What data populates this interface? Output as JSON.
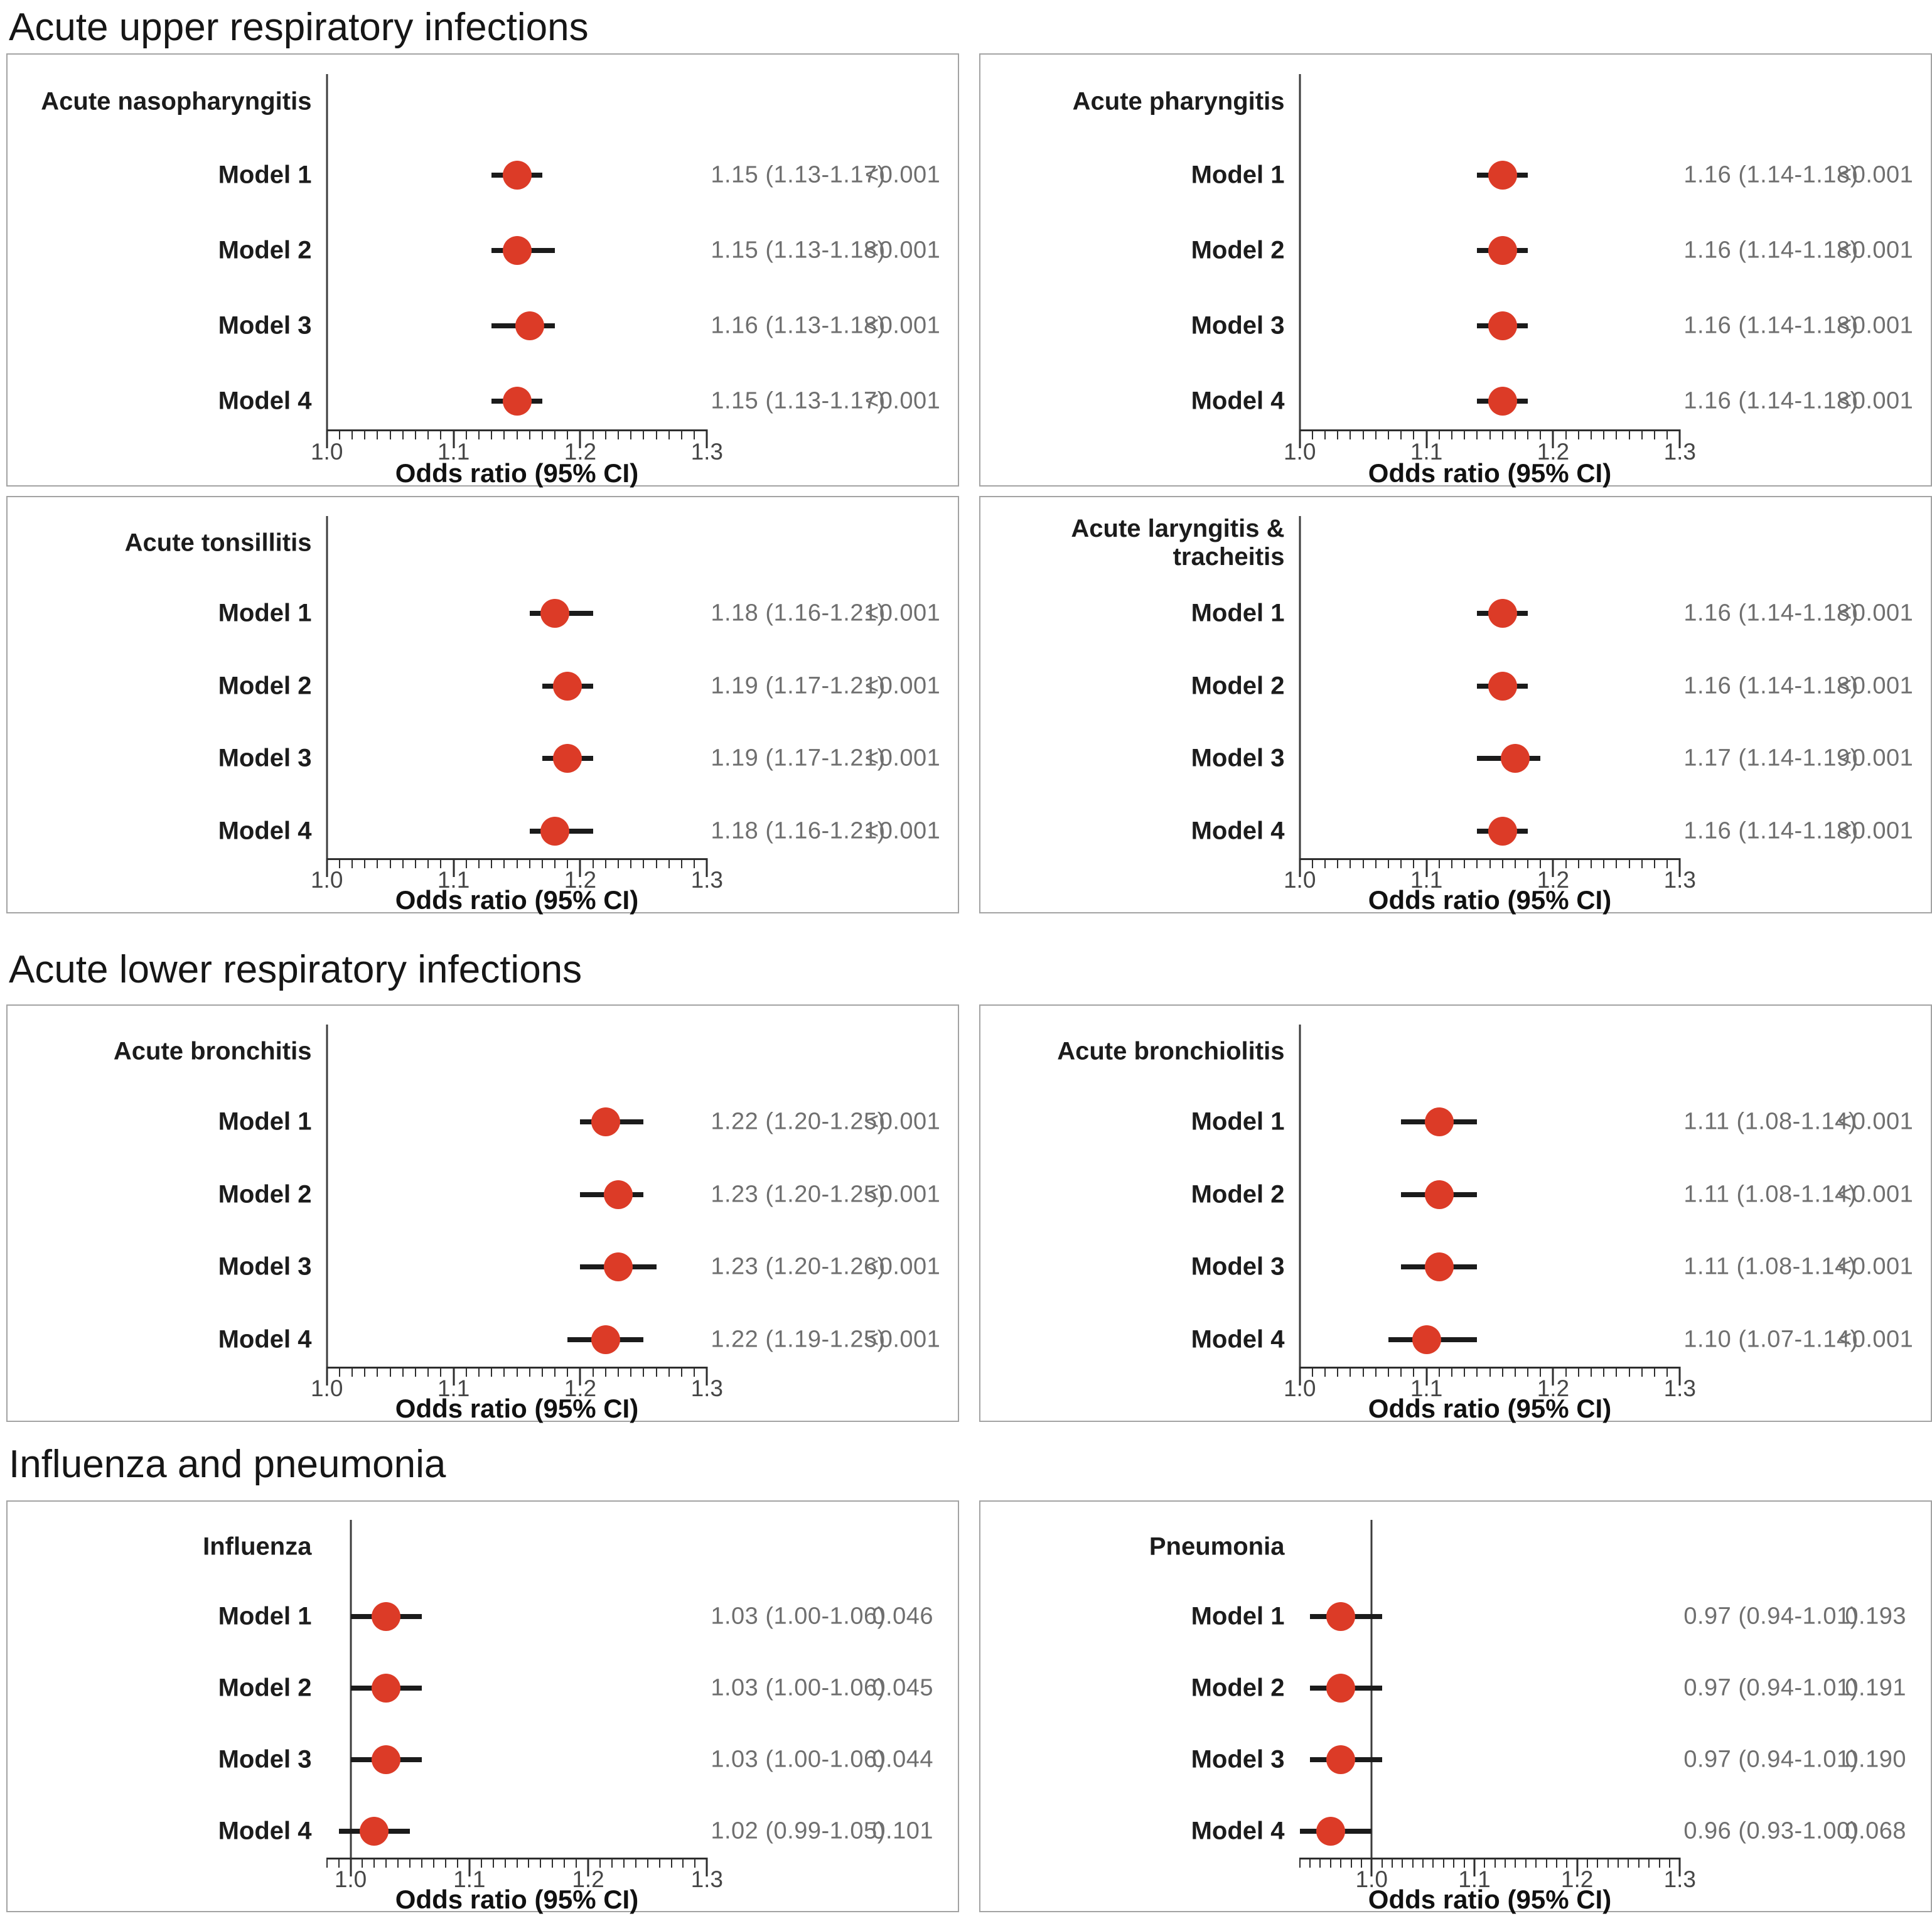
{
  "sections": [
    {
      "heading": "Acute upper respiratory infections",
      "panel_indices": [
        0,
        1,
        2,
        3
      ]
    },
    {
      "heading": "Acute lower respiratory infections",
      "panel_indices": [
        4,
        5
      ]
    },
    {
      "heading": "Influenza and pneumonia",
      "panel_indices": [
        6,
        7
      ]
    }
  ],
  "colors": {
    "point": "#DC3B27",
    "whisker": "#1b1b1b",
    "axis": "#2e2e2e",
    "reference_line": "#3d3d3d",
    "value_text": "#6f6f6f",
    "tick_text": "#464646"
  },
  "chart_data": [
    {
      "type": "scatter",
      "title": "Acute nasopharyngitis",
      "section": "Acute upper respiratory infections",
      "xlabel": "Odds ratio (95% CI)",
      "xlim": [
        1.0,
        1.3
      ],
      "xticks": [
        1.0,
        1.1,
        1.2,
        1.3
      ],
      "minor_tick_step": 0.01,
      "reference_line_x": 1.0,
      "rows": [
        {
          "model": "Model 1",
          "or": 1.15,
          "ci_low": 1.13,
          "ci_high": 1.17,
          "label": "1.15 (1.13-1.17)",
          "p": "<0.001"
        },
        {
          "model": "Model 2",
          "or": 1.15,
          "ci_low": 1.13,
          "ci_high": 1.18,
          "label": "1.15 (1.13-1.18)",
          "p": "<0.001"
        },
        {
          "model": "Model 3",
          "or": 1.16,
          "ci_low": 1.13,
          "ci_high": 1.18,
          "label": "1.16 (1.13-1.18)",
          "p": "<0.001"
        },
        {
          "model": "Model 4",
          "or": 1.15,
          "ci_low": 1.13,
          "ci_high": 1.17,
          "label": "1.15 (1.13-1.17)",
          "p": "<0.001"
        }
      ]
    },
    {
      "type": "scatter",
      "title": "Acute pharyngitis",
      "section": "Acute upper respiratory infections",
      "xlabel": "Odds ratio (95% CI)",
      "xlim": [
        1.0,
        1.3
      ],
      "xticks": [
        1.0,
        1.1,
        1.2,
        1.3
      ],
      "minor_tick_step": 0.01,
      "reference_line_x": 1.0,
      "rows": [
        {
          "model": "Model 1",
          "or": 1.16,
          "ci_low": 1.14,
          "ci_high": 1.18,
          "label": "1.16 (1.14-1.18)",
          "p": "<0.001"
        },
        {
          "model": "Model 2",
          "or": 1.16,
          "ci_low": 1.14,
          "ci_high": 1.18,
          "label": "1.16 (1.14-1.18)",
          "p": "<0.001"
        },
        {
          "model": "Model 3",
          "or": 1.16,
          "ci_low": 1.14,
          "ci_high": 1.18,
          "label": "1.16 (1.14-1.18)",
          "p": "<0.001"
        },
        {
          "model": "Model 4",
          "or": 1.16,
          "ci_low": 1.14,
          "ci_high": 1.18,
          "label": "1.16 (1.14-1.18)",
          "p": "<0.001"
        }
      ]
    },
    {
      "type": "scatter",
      "title": "Acute tonsillitis",
      "section": "Acute upper respiratory infections",
      "xlabel": "Odds ratio (95% CI)",
      "xlim": [
        1.0,
        1.3
      ],
      "xticks": [
        1.0,
        1.1,
        1.2,
        1.3
      ],
      "minor_tick_step": 0.01,
      "reference_line_x": 1.0,
      "rows": [
        {
          "model": "Model 1",
          "or": 1.18,
          "ci_low": 1.16,
          "ci_high": 1.21,
          "label": "1.18 (1.16-1.21)",
          "p": "<0.001"
        },
        {
          "model": "Model 2",
          "or": 1.19,
          "ci_low": 1.17,
          "ci_high": 1.21,
          "label": "1.19 (1.17-1.21)",
          "p": "<0.001"
        },
        {
          "model": "Model 3",
          "or": 1.19,
          "ci_low": 1.17,
          "ci_high": 1.21,
          "label": "1.19 (1.17-1.21)",
          "p": "<0.001"
        },
        {
          "model": "Model 4",
          "or": 1.18,
          "ci_low": 1.16,
          "ci_high": 1.21,
          "label": "1.18 (1.16-1.21)",
          "p": "<0.001"
        }
      ]
    },
    {
      "type": "scatter",
      "title": "Acute laryngitis & tracheitis",
      "section": "Acute upper respiratory infections",
      "xlabel": "Odds ratio (95% CI)",
      "xlim": [
        1.0,
        1.3
      ],
      "xticks": [
        1.0,
        1.1,
        1.2,
        1.3
      ],
      "minor_tick_step": 0.01,
      "reference_line_x": 1.0,
      "rows": [
        {
          "model": "Model 1",
          "or": 1.16,
          "ci_low": 1.14,
          "ci_high": 1.18,
          "label": "1.16 (1.14-1.18)",
          "p": "<0.001"
        },
        {
          "model": "Model 2",
          "or": 1.16,
          "ci_low": 1.14,
          "ci_high": 1.18,
          "label": "1.16 (1.14-1.18)",
          "p": "<0.001"
        },
        {
          "model": "Model 3",
          "or": 1.17,
          "ci_low": 1.14,
          "ci_high": 1.19,
          "label": "1.17 (1.14-1.19)",
          "p": "<0.001"
        },
        {
          "model": "Model 4",
          "or": 1.16,
          "ci_low": 1.14,
          "ci_high": 1.18,
          "label": "1.16 (1.14-1.18)",
          "p": "<0.001"
        }
      ]
    },
    {
      "type": "scatter",
      "title": "Acute bronchitis",
      "section": "Acute lower respiratory infections",
      "xlabel": "Odds ratio (95% CI)",
      "xlim": [
        1.0,
        1.3
      ],
      "xticks": [
        1.0,
        1.1,
        1.2,
        1.3
      ],
      "minor_tick_step": 0.01,
      "reference_line_x": 1.0,
      "rows": [
        {
          "model": "Model 1",
          "or": 1.22,
          "ci_low": 1.2,
          "ci_high": 1.25,
          "label": "1.22 (1.20-1.25)",
          "p": "<0.001"
        },
        {
          "model": "Model 2",
          "or": 1.23,
          "ci_low": 1.2,
          "ci_high": 1.25,
          "label": "1.23 (1.20-1.25)",
          "p": "<0.001"
        },
        {
          "model": "Model 3",
          "or": 1.23,
          "ci_low": 1.2,
          "ci_high": 1.26,
          "label": "1.23 (1.20-1.26)",
          "p": "<0.001"
        },
        {
          "model": "Model 4",
          "or": 1.22,
          "ci_low": 1.19,
          "ci_high": 1.25,
          "label": "1.22 (1.19-1.25)",
          "p": "<0.001"
        }
      ]
    },
    {
      "type": "scatter",
      "title": "Acute bronchiolitis",
      "section": "Acute lower respiratory infections",
      "xlabel": "Odds ratio (95% CI)",
      "xlim": [
        1.0,
        1.3
      ],
      "xticks": [
        1.0,
        1.1,
        1.2,
        1.3
      ],
      "minor_tick_step": 0.01,
      "reference_line_x": 1.0,
      "rows": [
        {
          "model": "Model 1",
          "or": 1.11,
          "ci_low": 1.08,
          "ci_high": 1.14,
          "label": "1.11 (1.08-1.14)",
          "p": "<0.001"
        },
        {
          "model": "Model 2",
          "or": 1.11,
          "ci_low": 1.08,
          "ci_high": 1.14,
          "label": "1.11 (1.08-1.14)",
          "p": "<0.001"
        },
        {
          "model": "Model 3",
          "or": 1.11,
          "ci_low": 1.08,
          "ci_high": 1.14,
          "label": "1.11 (1.08-1.14)",
          "p": "<0.001"
        },
        {
          "model": "Model 4",
          "or": 1.1,
          "ci_low": 1.07,
          "ci_high": 1.14,
          "label": "1.10 (1.07-1.14)",
          "p": "<0.001"
        }
      ]
    },
    {
      "type": "scatter",
      "title": "Influenza",
      "section": "Influenza and pneumonia",
      "xlabel": "Odds ratio (95% CI)",
      "xlim": [
        0.98,
        1.3
      ],
      "xticks": [
        1.0,
        1.1,
        1.2,
        1.3
      ],
      "minor_tick_step": 0.01,
      "reference_line_x": 1.0,
      "rows": [
        {
          "model": "Model 1",
          "or": 1.03,
          "ci_low": 1.0,
          "ci_high": 1.06,
          "label": "1.03 (1.00-1.06)",
          "p": "0.046"
        },
        {
          "model": "Model 2",
          "or": 1.03,
          "ci_low": 1.0,
          "ci_high": 1.06,
          "label": "1.03 (1.00-1.06)",
          "p": "0.045"
        },
        {
          "model": "Model 3",
          "or": 1.03,
          "ci_low": 1.0,
          "ci_high": 1.06,
          "label": "1.03 (1.00-1.06)",
          "p": "0.044"
        },
        {
          "model": "Model 4",
          "or": 1.02,
          "ci_low": 0.99,
          "ci_high": 1.05,
          "label": "1.02 (0.99-1.05)",
          "p": "0.101"
        }
      ]
    },
    {
      "type": "scatter",
      "title": "Pneumonia",
      "section": "Influenza and pneumonia",
      "xlabel": "Odds ratio (95% CI)",
      "xlim": [
        0.93,
        1.3
      ],
      "xticks": [
        1.0,
        1.1,
        1.2,
        1.3
      ],
      "minor_tick_step": 0.01,
      "reference_line_x": 1.0,
      "rows": [
        {
          "model": "Model 1",
          "or": 0.97,
          "ci_low": 0.94,
          "ci_high": 1.01,
          "label": "0.97 (0.94-1.01)",
          "p": "0.193"
        },
        {
          "model": "Model 2",
          "or": 0.97,
          "ci_low": 0.94,
          "ci_high": 1.01,
          "label": "0.97 (0.94-1.01)",
          "p": "0.191"
        },
        {
          "model": "Model 3",
          "or": 0.97,
          "ci_low": 0.94,
          "ci_high": 1.01,
          "label": "0.97 (0.94-1.01)",
          "p": "0.190"
        },
        {
          "model": "Model 4",
          "or": 0.96,
          "ci_low": 0.93,
          "ci_high": 1.0,
          "label": "0.96 (0.93-1.00)",
          "p": "0.068"
        }
      ]
    }
  ]
}
